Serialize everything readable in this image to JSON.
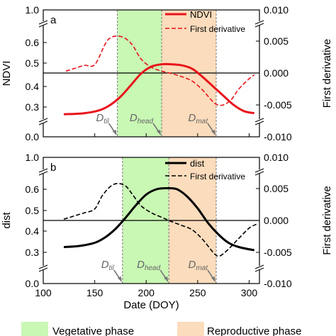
{
  "chart_data": [
    {
      "type": "line",
      "panel_label": "a",
      "ylabel": "NDVI",
      "y2label": "First derivative",
      "ylim": [
        0,
        1.0
      ],
      "yticks": [
        "0.0",
        "0.3",
        "0.4",
        "0.5",
        "0.6",
        "1.0"
      ],
      "y2lim": [
        -0.01,
        0.01
      ],
      "y2ticks": [
        "0.010",
        "0.005",
        "0.000",
        "-0.005",
        "-0.010"
      ],
      "xlim": [
        100,
        310
      ],
      "phases": {
        "vegetative": [
          172,
          215
        ],
        "reproductive": [
          215,
          268
        ]
      },
      "markers": [
        {
          "base": "D",
          "sub": "til",
          "x": 172
        },
        {
          "base": "D",
          "sub": "head",
          "x": 215
        },
        {
          "base": "D",
          "sub": "mat",
          "x": 268
        }
      ],
      "series": [
        {
          "name": "NDVI",
          "axis": "left",
          "style": "solid",
          "color": "#e8141b",
          "x": [
            120,
            140,
            155,
            165,
            175,
            185,
            195,
            205,
            215,
            225,
            235,
            245,
            255,
            265,
            275,
            285,
            295,
            305
          ],
          "y": [
            0.265,
            0.27,
            0.285,
            0.31,
            0.35,
            0.405,
            0.455,
            0.485,
            0.495,
            0.495,
            0.49,
            0.475,
            0.44,
            0.4,
            0.355,
            0.31,
            0.28,
            0.27
          ]
        },
        {
          "name": "First derivative",
          "axis": "right",
          "style": "dashed",
          "color": "#e8141b",
          "x": [
            122,
            130,
            140,
            150,
            160,
            165,
            172,
            180,
            187,
            195,
            205,
            215,
            225,
            235,
            245,
            255,
            262,
            268,
            275,
            283,
            290,
            300,
            305
          ],
          "y": [
            0.0003,
            0.0007,
            0.0012,
            0.0013,
            0.0045,
            0.0055,
            0.0058,
            0.0054,
            0.0043,
            0.0022,
            0.0009,
            0.0003,
            -0.0001,
            -0.0006,
            -0.0013,
            -0.0027,
            -0.004,
            -0.0049,
            -0.005,
            -0.0041,
            -0.0025,
            -0.0009,
            -0.0003
          ]
        }
      ]
    },
    {
      "type": "line",
      "panel_label": "b",
      "ylabel": "dist",
      "y2label": "First derivative",
      "xlabel": "Date (DOY)",
      "ylim": [
        0,
        1.0
      ],
      "yticks": [
        "0.0",
        "0.3",
        "0.4",
        "0.5",
        "0.6",
        "1.0"
      ],
      "y2lim": [
        -0.01,
        0.01
      ],
      "y2ticks": [
        "0.010",
        "0.005",
        "0.000",
        "-0.005",
        "-0.010"
      ],
      "xlim": [
        100,
        310
      ],
      "xticks": [
        "100",
        "150",
        "200",
        "250",
        "300"
      ],
      "phases": {
        "vegetative": [
          177,
          222
        ],
        "reproductive": [
          222,
          268
        ]
      },
      "markers": [
        {
          "base": "D",
          "sub": "til",
          "x": 177
        },
        {
          "base": "D",
          "sub": "head",
          "x": 222
        },
        {
          "base": "D",
          "sub": "mat",
          "x": 268
        }
      ],
      "series": [
        {
          "name": "dist",
          "axis": "left",
          "style": "solid",
          "color": "#000000",
          "x": [
            120,
            135,
            150,
            160,
            170,
            180,
            190,
            200,
            210,
            220,
            230,
            240,
            250,
            260,
            270,
            280,
            290,
            305
          ],
          "y": [
            0.325,
            0.33,
            0.345,
            0.37,
            0.41,
            0.465,
            0.525,
            0.575,
            0.6,
            0.605,
            0.6,
            0.565,
            0.51,
            0.44,
            0.385,
            0.345,
            0.325,
            0.31
          ]
        },
        {
          "name": "First derivative",
          "axis": "right",
          "style": "dashed",
          "color": "#000000",
          "x": [
            120,
            130,
            140,
            150,
            157,
            165,
            172,
            180,
            187,
            195,
            205,
            215,
            225,
            235,
            245,
            255,
            265,
            270,
            275,
            283,
            290,
            300,
            307
          ],
          "y": [
            0.0002,
            0.0007,
            0.0012,
            0.0018,
            0.0038,
            0.0053,
            0.0058,
            0.0054,
            0.004,
            0.0023,
            0.0012,
            0.0005,
            -0.0002,
            -0.0008,
            -0.0015,
            -0.003,
            -0.005,
            -0.0056,
            -0.0052,
            -0.004,
            -0.0028,
            -0.0012,
            -0.0006
          ]
        }
      ]
    }
  ],
  "legend_bottom": {
    "vegetative": "Vegetative phase",
    "reproductive": "Reproductive phase"
  },
  "colors": {
    "vegetative": "#c9f7b4",
    "reproductive": "#fbdcbc",
    "ndvi": "#e8141b",
    "dist": "#000000"
  }
}
